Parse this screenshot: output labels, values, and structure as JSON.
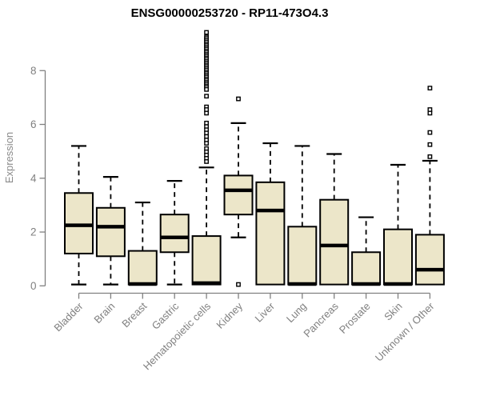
{
  "page": {
    "background": "#ffffff"
  },
  "chart_data": {
    "type": "boxplot",
    "title": "ENSG00000253720 - RP11-473O4.3",
    "ylabel": "Expression",
    "xlabel": "",
    "ylim": [
      0,
      9.5
    ],
    "yticks": [
      0,
      2,
      4,
      6,
      8
    ],
    "grid": false,
    "legend": "none",
    "categories": [
      "Bladder",
      "Brain",
      "Breast",
      "Gastric",
      "Hematopoietic cells",
      "Kidney",
      "Liver",
      "Lung",
      "Pancreas",
      "Prostate",
      "Skin",
      "Unknown / Other"
    ],
    "boxes": [
      {
        "category": "Bladder",
        "whisker_low": 0.05,
        "q1": 1.2,
        "median": 2.25,
        "q3": 3.45,
        "whisker_high": 5.2,
        "outliers": []
      },
      {
        "category": "Brain",
        "whisker_low": 0.05,
        "q1": 1.1,
        "median": 2.2,
        "q3": 2.9,
        "whisker_high": 4.05,
        "outliers": []
      },
      {
        "category": "Breast",
        "whisker_low": 0.05,
        "q1": 0.05,
        "median": 0.07,
        "q3": 1.3,
        "whisker_high": 3.1,
        "outliers": []
      },
      {
        "category": "Gastric",
        "whisker_low": 0.05,
        "q1": 1.25,
        "median": 1.8,
        "q3": 2.65,
        "whisker_high": 3.9,
        "outliers": []
      },
      {
        "category": "Hematopoietic cells",
        "whisker_low": 0.05,
        "q1": 0.05,
        "median": 0.1,
        "q3": 1.85,
        "whisker_high": 4.4,
        "outliers": [
          9.42,
          9.25,
          9.19,
          9.12,
          9.06,
          8.99,
          8.93,
          8.86,
          8.8,
          8.73,
          8.67,
          8.6,
          8.54,
          8.47,
          8.41,
          8.34,
          8.28,
          8.21,
          8.15,
          8.08,
          8.02,
          7.95,
          7.89,
          7.82,
          7.76,
          7.69,
          7.63,
          7.56,
          7.5,
          7.43,
          7.37,
          7.3,
          7.05,
          6.65,
          6.55,
          6.42,
          6.05,
          5.92,
          5.8,
          5.68,
          5.55,
          5.42,
          5.3,
          5.1,
          4.98,
          4.86,
          4.74,
          4.62
        ]
      },
      {
        "category": "Kidney",
        "whisker_low": 1.8,
        "q1": 2.65,
        "median": 3.55,
        "q3": 4.1,
        "whisker_high": 6.05,
        "outliers": [
          6.95,
          0.05
        ]
      },
      {
        "category": "Liver",
        "whisker_low": 0.05,
        "q1": 0.05,
        "median": 2.8,
        "q3": 3.85,
        "whisker_high": 5.3,
        "outliers": []
      },
      {
        "category": "Lung",
        "whisker_low": 0.05,
        "q1": 0.05,
        "median": 0.07,
        "q3": 2.2,
        "whisker_high": 5.2,
        "outliers": []
      },
      {
        "category": "Pancreas",
        "whisker_low": 0.05,
        "q1": 0.05,
        "median": 1.5,
        "q3": 3.2,
        "whisker_high": 4.9,
        "outliers": []
      },
      {
        "category": "Prostate",
        "whisker_low": 0.05,
        "q1": 0.05,
        "median": 0.07,
        "q3": 1.25,
        "whisker_high": 2.55,
        "outliers": []
      },
      {
        "category": "Skin",
        "whisker_low": 0.05,
        "q1": 0.05,
        "median": 0.07,
        "q3": 2.1,
        "whisker_high": 4.5,
        "outliers": []
      },
      {
        "category": "Unknown / Other",
        "whisker_low": 0.05,
        "q1": 0.05,
        "median": 0.6,
        "q3": 1.9,
        "whisker_high": 4.65,
        "outliers": [
          7.35,
          6.55,
          6.42,
          5.7,
          5.25,
          4.8
        ]
      }
    ],
    "style": {
      "box_fill": "#ece6c9",
      "box_stroke": "#000000",
      "median_color": "#000000",
      "axis_color": "#808080",
      "tick_label_color": "#808080",
      "category_label_color": "#808080",
      "ylabel_color": "#8a8a8a",
      "title_color": "#000000",
      "background": "#ffffff"
    }
  }
}
